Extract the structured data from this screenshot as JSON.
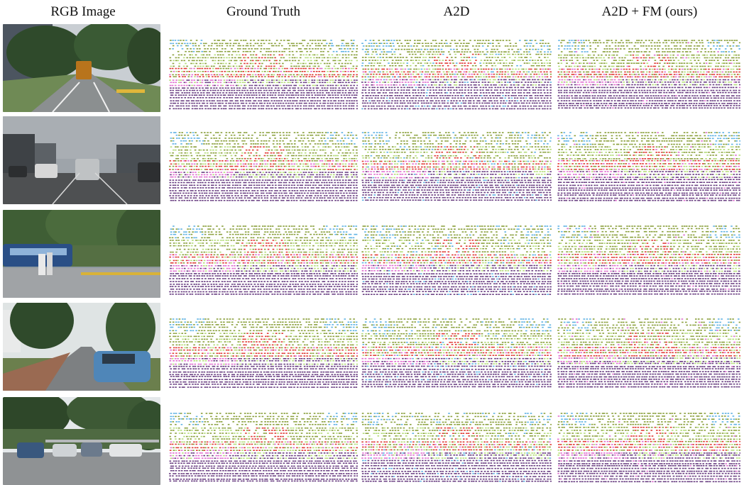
{
  "columns": [
    {
      "label": "RGB Image"
    },
    {
      "label": "Ground Truth"
    },
    {
      "label": "A2D"
    },
    {
      "label": "A2D + FM (ours)"
    }
  ],
  "rows": [
    {
      "scene": "road-with-bus-and-lane-markings"
    },
    {
      "scene": "overcast-urban-road-with-cars"
    },
    {
      "scene": "pedestrian-crossing-with-bus"
    },
    {
      "scene": "tree-lined-road-with-parked-taxi"
    },
    {
      "scene": "parking-lot-with-cars"
    }
  ],
  "semantic_colors": {
    "vegetation": "#8aa03c",
    "terrain": "#b5dd7a",
    "manmade": "#5fb2e3",
    "vehicle": "#e03b35",
    "driveable": "#6a3f82",
    "sidewalk": "#e06fd0",
    "pedestrian": "#f2b13a"
  }
}
